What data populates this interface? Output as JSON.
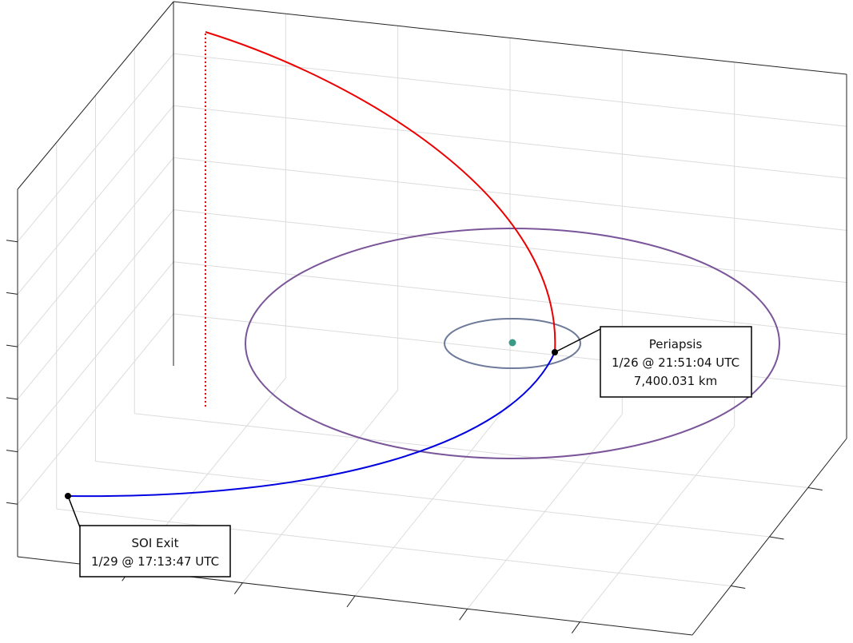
{
  "annotations": [
    {
      "lines": [
        "Periapsis",
        "1/26 @ 21:51:04 UTC",
        "7,400.031 km"
      ]
    },
    {
      "lines": [
        "SOI Exit",
        "1/29 @ 17:13:47 UTC"
      ]
    }
  ]
}
